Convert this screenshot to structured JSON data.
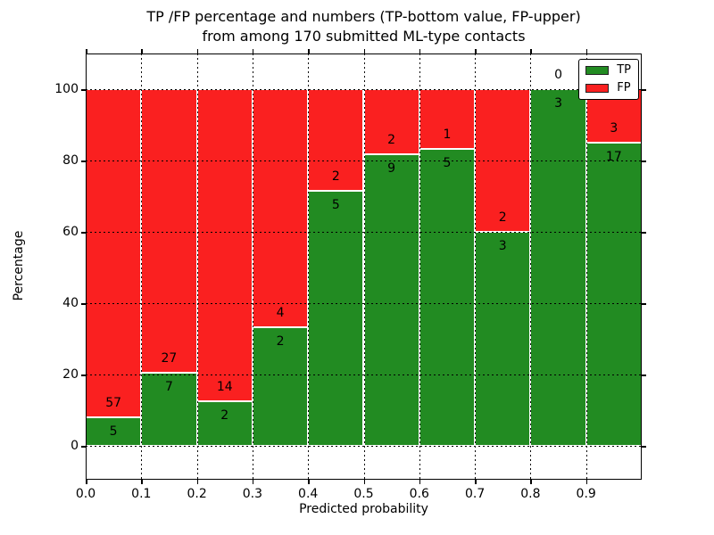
{
  "figure": {
    "title_line1": "TP /FP percentage and numbers (TP-bottom value, FP-upper)",
    "title_line2": "from among 170 submitted ML-type contacts"
  },
  "chart_data": {
    "type": "bar",
    "variant": "stacked-percentage",
    "title": "TP /FP percentage and numbers (TP-bottom value, FP-upper) from among 170 submitted ML-type contacts",
    "xlabel": "Predicted probability",
    "ylabel": "Percentage",
    "total_contacts": 170,
    "bin_width": 0.1,
    "categories": [
      "0.0-0.1",
      "0.1-0.2",
      "0.2-0.3",
      "0.3-0.4",
      "0.4-0.5",
      "0.5-0.6",
      "0.6-0.7",
      "0.7-0.8",
      "0.8-0.9",
      "0.9-1.0"
    ],
    "series": [
      {
        "name": "TP",
        "color": "#228b22",
        "counts": [
          5,
          7,
          2,
          2,
          5,
          9,
          5,
          3,
          3,
          17
        ]
      },
      {
        "name": "FP",
        "color": "#fa2020",
        "counts": [
          57,
          27,
          14,
          4,
          2,
          2,
          1,
          2,
          0,
          3
        ]
      }
    ],
    "tp_percent": [
      8.06,
      20.59,
      12.5,
      33.33,
      71.43,
      81.82,
      83.33,
      60.0,
      100.0,
      85.0
    ],
    "annotation_rule": "FP count printed above TP/FP boundary, TP count printed below boundary",
    "x_tick_labels": [
      "0.0",
      "0.1",
      "0.2",
      "0.3",
      "0.4",
      "0.5",
      "0.6",
      "0.7",
      "0.8",
      "0.9"
    ],
    "x_tick_values": [
      0.0,
      0.1,
      0.2,
      0.3,
      0.4,
      0.5,
      0.6,
      0.7,
      0.8,
      0.9
    ],
    "y_ticks": [
      0,
      20,
      40,
      60,
      80,
      100
    ],
    "xlim": [
      0.0,
      1.0
    ],
    "ylim": [
      -9.5,
      110
    ],
    "grid": {
      "style": "dotted",
      "color": "#000000",
      "on": true
    },
    "legend": {
      "position": "upper right",
      "items": [
        "TP",
        "FP"
      ]
    },
    "bar_edge_color": "#ffffff",
    "background_color": "#ffffff"
  }
}
